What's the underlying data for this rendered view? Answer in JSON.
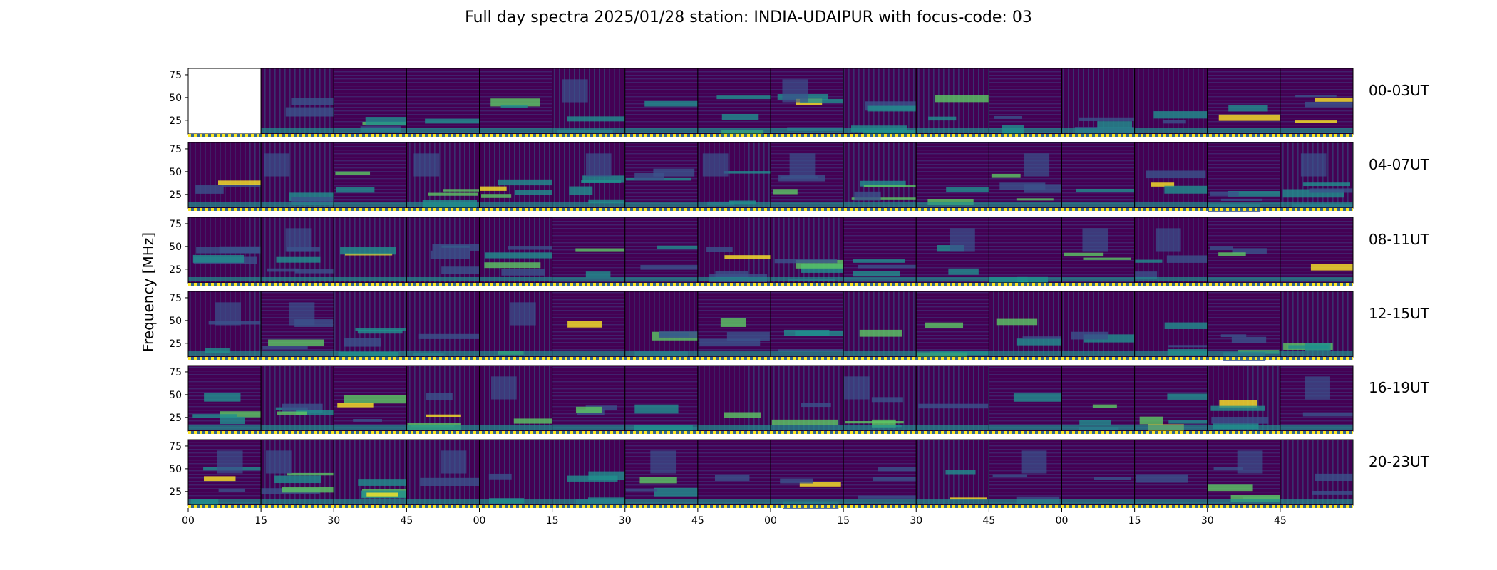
{
  "title": "Full day spectra 2025/01/28 station: INDIA-UDAIPUR with focus-code: 03",
  "chart_data": {
    "type": "heatmap",
    "title": "Full day spectra 2025/01/28 station: INDIA-UDAIPUR with focus-code: 03",
    "ylabel": "Frequency [MHz]",
    "xlabel": "",
    "yticks": [
      "75",
      "50",
      "25"
    ],
    "ytick_values": [
      75,
      50,
      25
    ],
    "ylim": [
      10,
      82
    ],
    "xticks": [
      "00",
      "15",
      "30",
      "45",
      "00",
      "15",
      "30",
      "45",
      "00",
      "15",
      "30",
      "45",
      "00",
      "15",
      "30",
      "45"
    ],
    "colormap": [
      "#440154",
      "#3b528b",
      "#21908d",
      "#5dc963",
      "#fde725"
    ],
    "row_labels": [
      "00-03UT",
      "04-07UT",
      "08-11UT",
      "12-15UT",
      "16-19UT",
      "20-23UT"
    ],
    "panels_per_row": 16,
    "panel_minutes": 15,
    "missing_panels": [
      [
        0,
        0
      ]
    ]
  }
}
